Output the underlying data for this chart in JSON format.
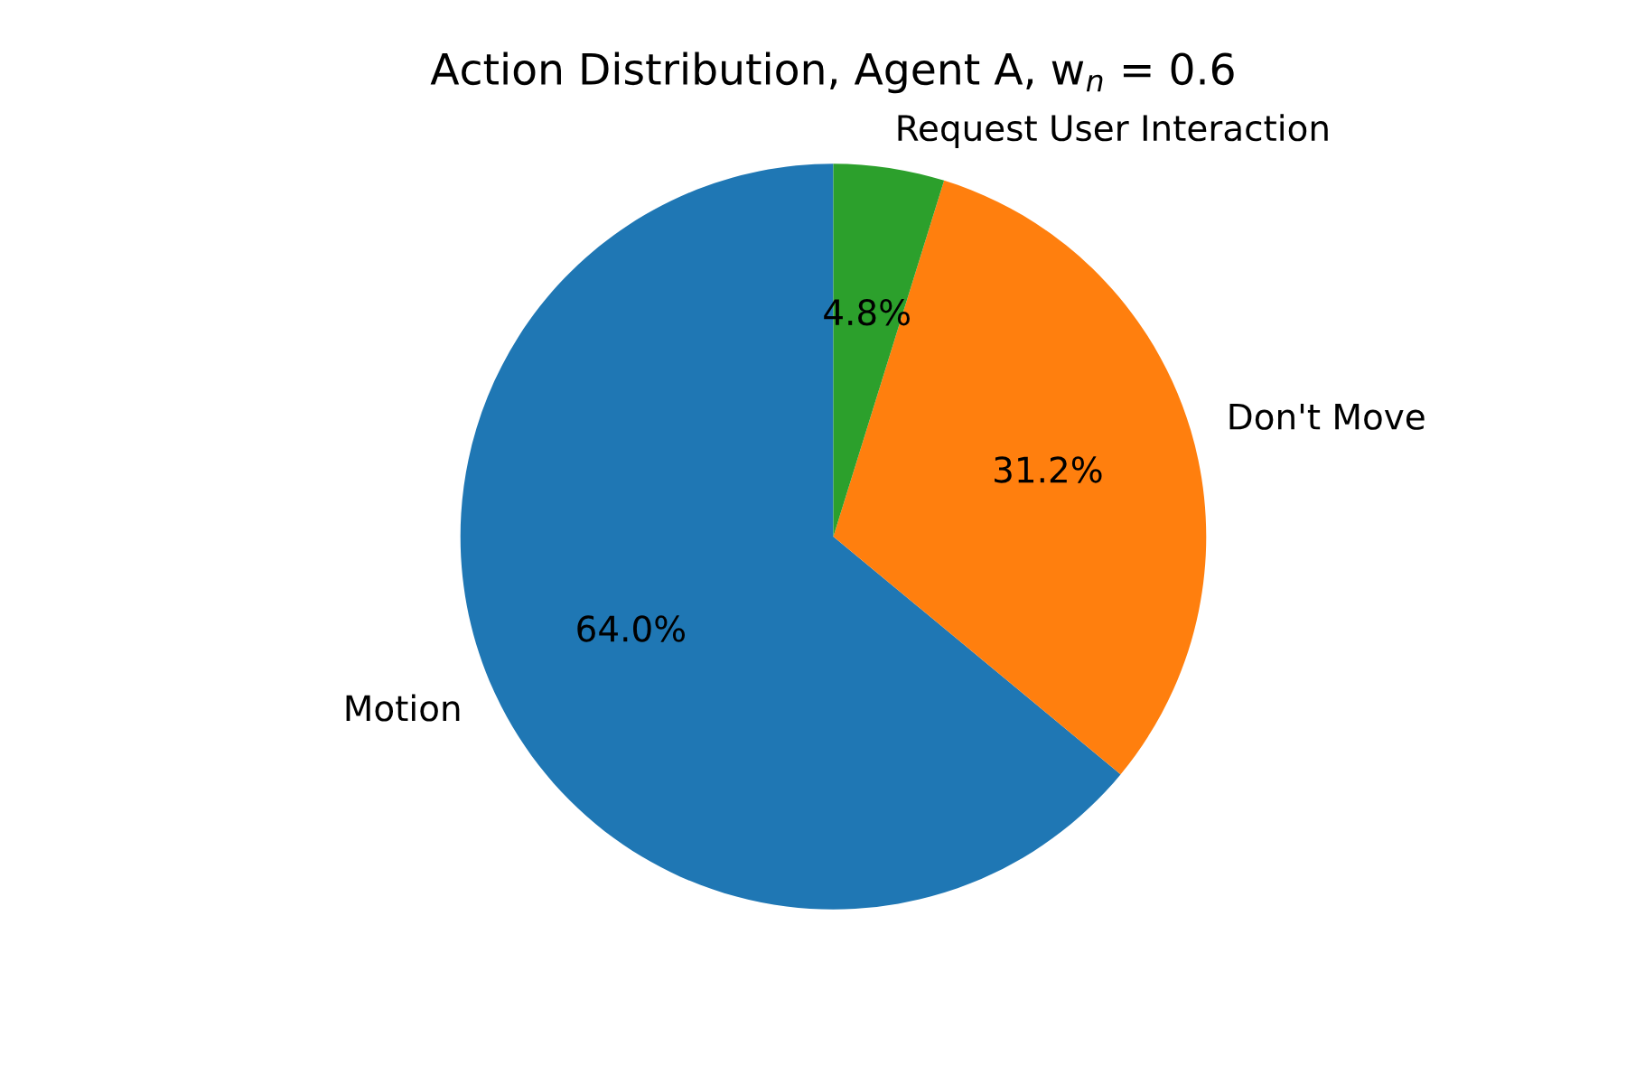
{
  "chart_data": {
    "type": "pie",
    "title": "Action Distribution, Agent A, w$_{n}$ = 0.6",
    "categories": [
      "Motion",
      "Don't Move",
      "Request User Interaction"
    ],
    "values": [
      64.0,
      31.2,
      4.8
    ],
    "colors": [
      "#1f77b4",
      "#ff7f0e",
      "#2ca02c"
    ],
    "value_labels": [
      "64.0%",
      "31.2%",
      "4.8%"
    ]
  }
}
